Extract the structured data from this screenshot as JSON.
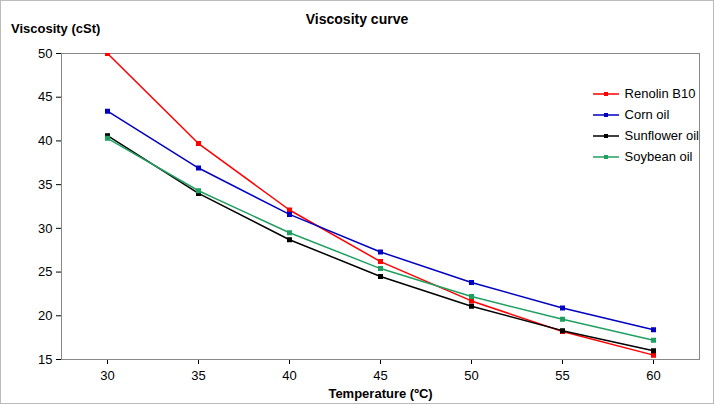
{
  "chart_data": {
    "type": "line",
    "title": "Viscosity curve",
    "x_label": "Temperature (ºC)",
    "y_label": "Viscosity (cSt)",
    "categories": [
      "30",
      "35",
      "40",
      "45",
      "50",
      "55",
      "60"
    ],
    "series": [
      {
        "name": "Renolin B10",
        "color": "#ff0000",
        "marker": "square",
        "values": [
          50,
          39.7,
          32.1,
          26.2,
          21.7,
          18.2,
          15.5
        ]
      },
      {
        "name": "Corn oil",
        "color": "#0000c0",
        "marker": "square",
        "values": [
          43.4,
          36.9,
          31.6,
          27.3,
          23.8,
          20.9,
          18.4
        ]
      },
      {
        "name": "Sunflower oil",
        "color": "#000000",
        "marker": "square",
        "values": [
          40.6,
          34,
          28.7,
          24.5,
          21.1,
          18.3,
          16
        ]
      },
      {
        "name": "Soybean oil",
        "color": "#20a060",
        "marker": "square",
        "values": [
          40.3,
          34.3,
          29.5,
          25.4,
          22.2,
          19.6,
          17.2
        ]
      }
    ],
    "ylim": [
      15,
      50
    ],
    "yticks": [
      15,
      20,
      25,
      30,
      35,
      40,
      45,
      50
    ],
    "grid": false,
    "legend": "right"
  }
}
